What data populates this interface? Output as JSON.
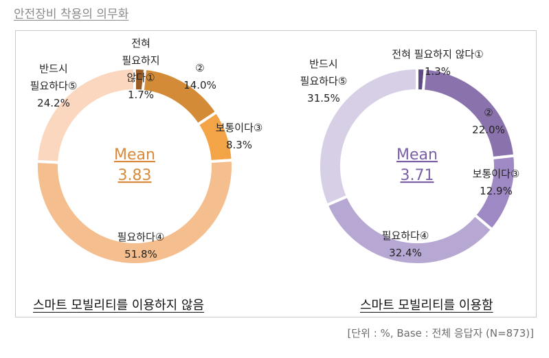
{
  "title": "안전장비 착용의 의무화",
  "footnote": "[단위 : %, Base : 전체 응답자 (N=873)]",
  "chart_data": [
    {
      "type": "pie",
      "caption": "스마트 모빌리티를 이용하지 않음",
      "mean_label": "Mean",
      "mean_value": "3.83",
      "accent": "#d88a3a",
      "slices": [
        {
          "label": "전혀 필요하지 않다①",
          "value": 1.7,
          "color": "#9a5b24"
        },
        {
          "label": "②",
          "value": 14.0,
          "color": "#d48b37"
        },
        {
          "label": "보통이다③",
          "value": 8.3,
          "color": "#f3a446"
        },
        {
          "label": "필요하다④",
          "value": 51.8,
          "color": "#f5be8e"
        },
        {
          "label": "반드시 필요하다⑤",
          "value": 24.2,
          "color": "#fad7be"
        }
      ]
    },
    {
      "type": "pie",
      "caption": "스마트 모빌리티를 이용함",
      "mean_label": "Mean",
      "mean_value": "3.71",
      "accent": "#7a5fa6",
      "slices": [
        {
          "label": "전혀 필요하지 않다①",
          "value": 1.3,
          "color": "#5e4a84"
        },
        {
          "label": "②",
          "value": 22.0,
          "color": "#8a73ad"
        },
        {
          "label": "보통이다③",
          "value": 12.9,
          "color": "#9f89c4"
        },
        {
          "label": "필요하다④",
          "value": 32.4,
          "color": "#b7a8d3"
        },
        {
          "label": "반드시 필요하다⑤",
          "value": 31.5,
          "color": "#d6cfe6"
        }
      ]
    }
  ],
  "labels": {
    "left": [
      {
        "lines": [
          "전혀",
          "필요하지",
          "않다①",
          "1.7%"
        ]
      },
      {
        "lines": [
          "②",
          "14.0%"
        ]
      },
      {
        "lines": [
          "보통이다③",
          "8.3%"
        ]
      },
      {
        "lines": [
          "필요하다④",
          "51.8%"
        ]
      },
      {
        "lines": [
          "반드시",
          "필요하다⑤",
          "24.2%"
        ]
      }
    ],
    "right": [
      {
        "lines": [
          "전혀 필요하지 않다①",
          "1.3%"
        ]
      },
      {
        "lines": [
          "②",
          "22.0%"
        ]
      },
      {
        "lines": [
          "보통이다③",
          "12.9%"
        ]
      },
      {
        "lines": [
          "필요하다④",
          "32.4%"
        ]
      },
      {
        "lines": [
          "반드시",
          "필요하다⑤",
          "31.5%"
        ]
      }
    ]
  }
}
